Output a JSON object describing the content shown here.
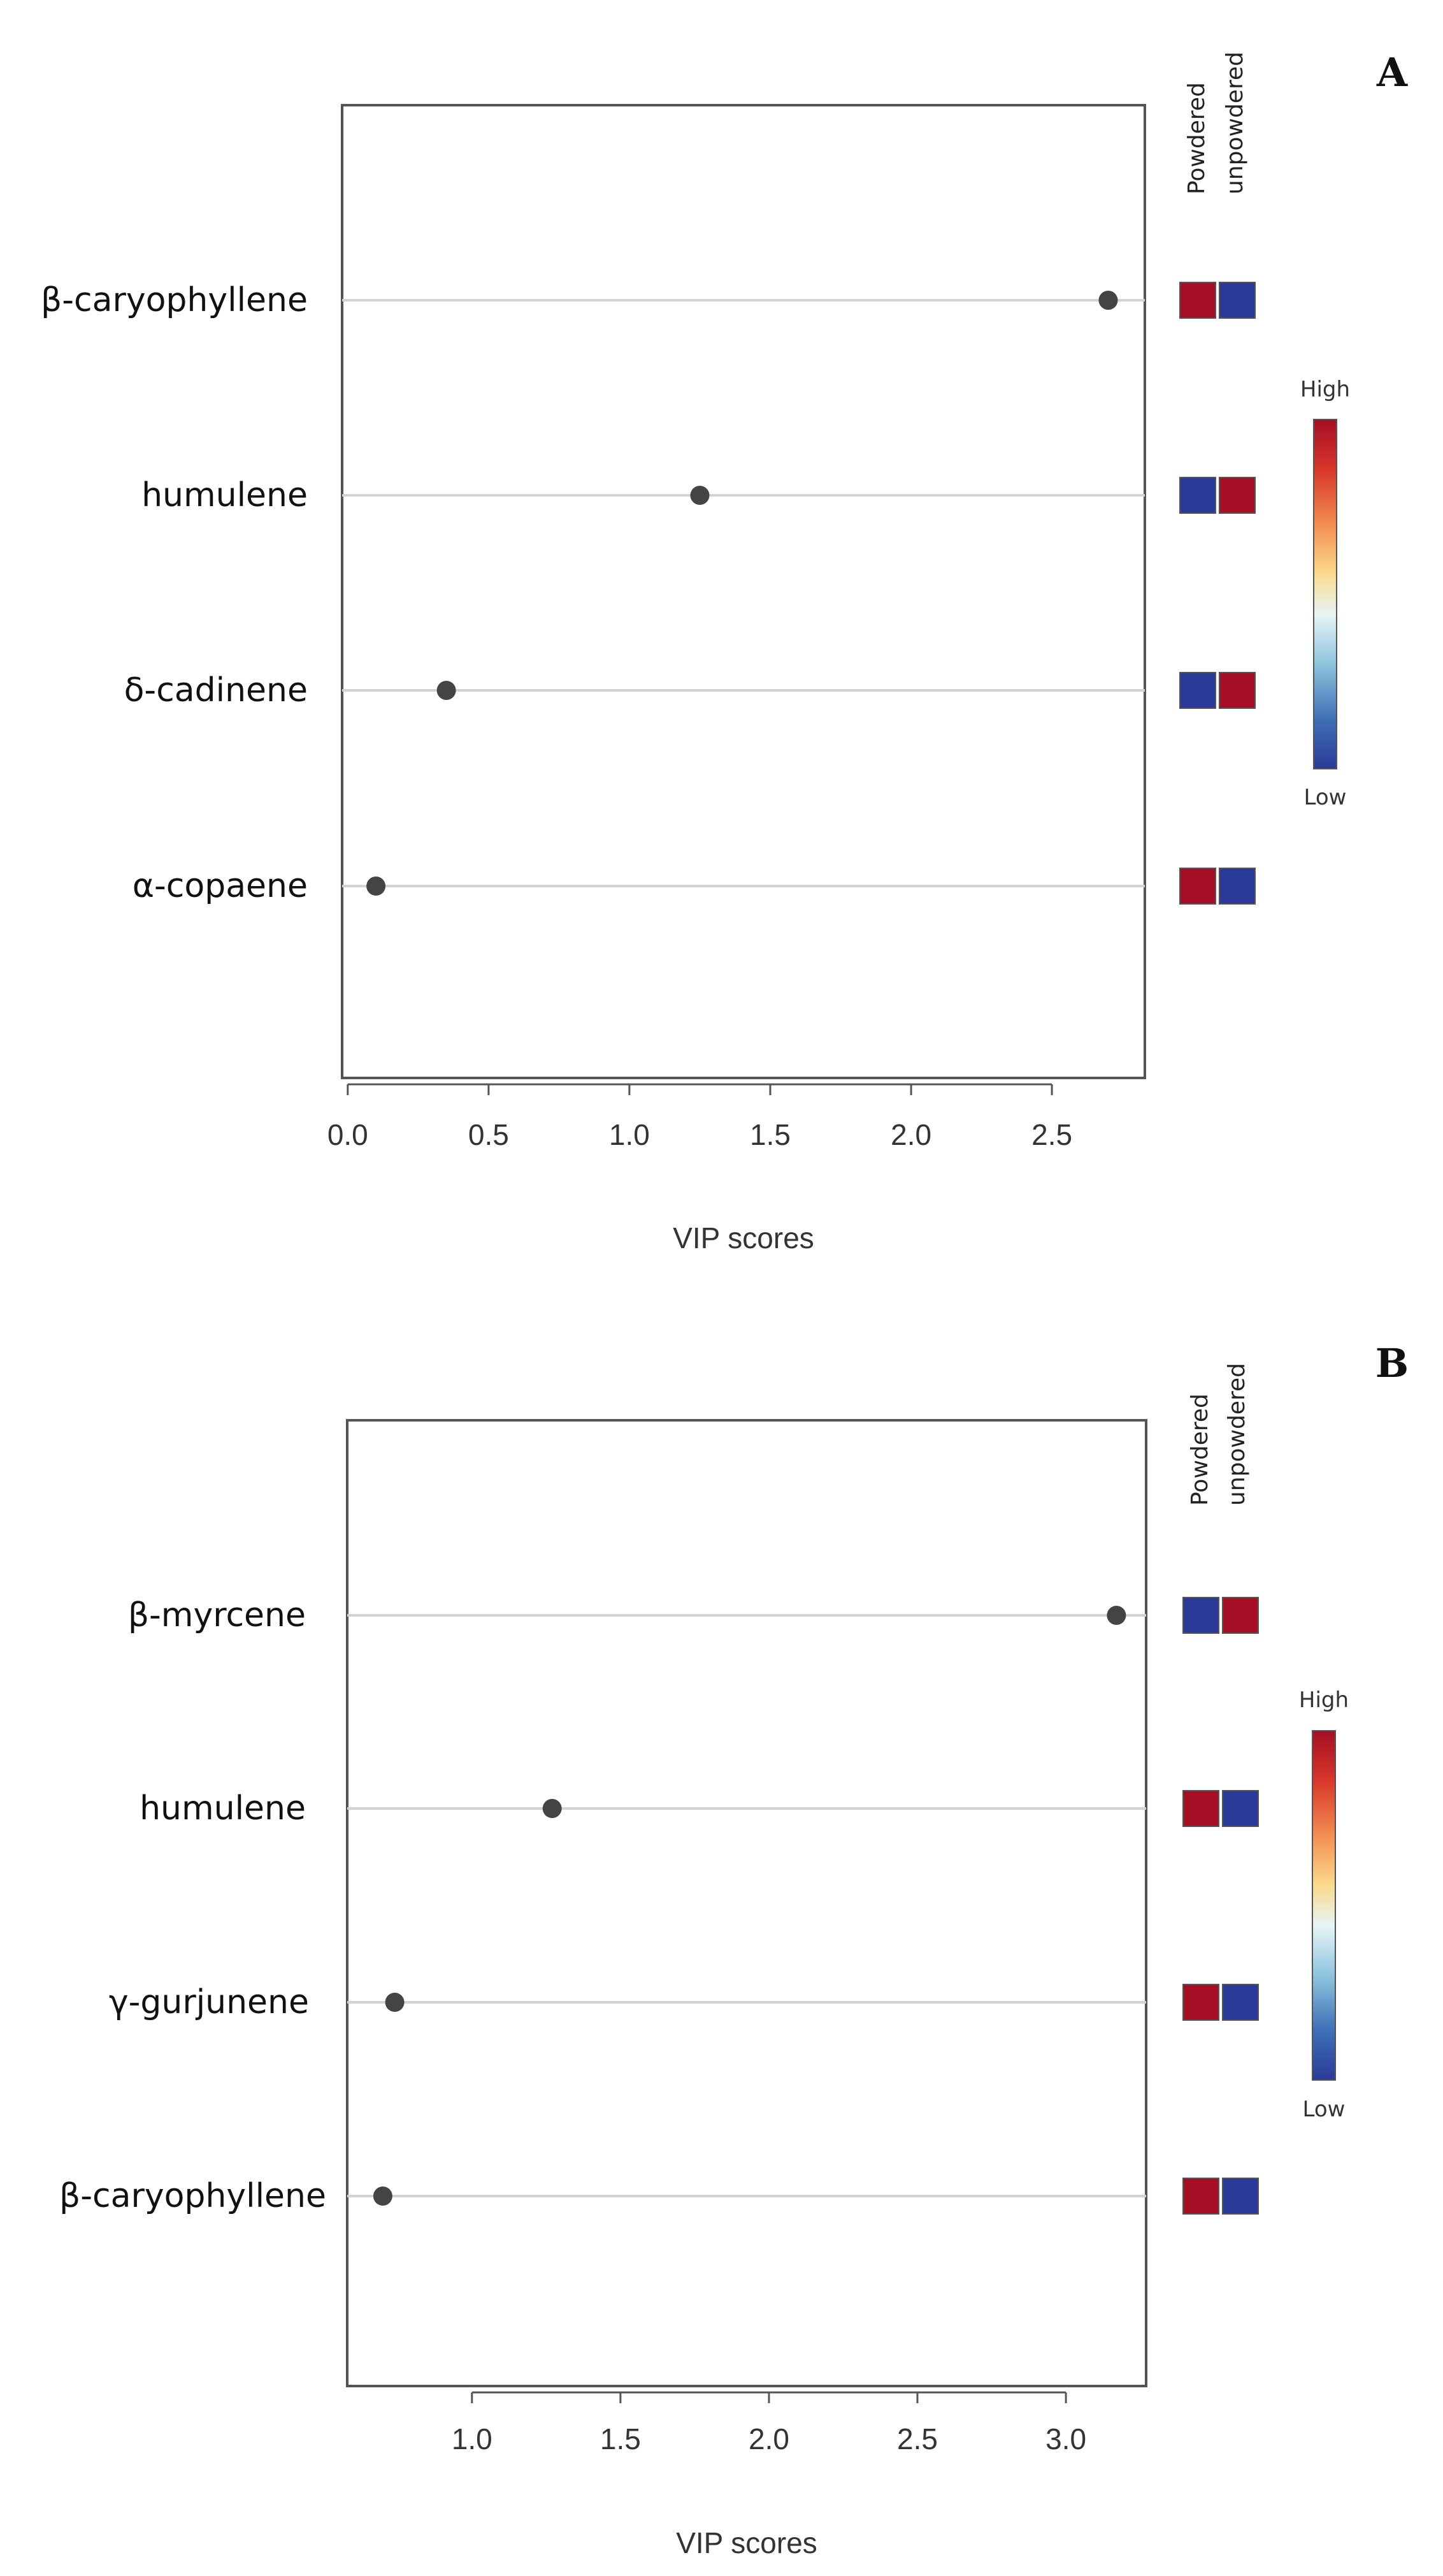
{
  "chart_data": [
    {
      "type": "scatter",
      "panel_label": "A",
      "xlabel": "VIP scores",
      "x_ticks": [
        "0.0",
        "0.5",
        "1.0",
        "1.5",
        "2.0",
        "2.5"
      ],
      "xlim": [
        -0.02,
        2.83
      ],
      "categories": [
        "β-caryophyllene",
        "humulene",
        "δ-cadinene",
        "α-copaene"
      ],
      "values": [
        2.7,
        1.25,
        0.35,
        0.1
      ],
      "heatmap_columns": [
        "Powdered",
        "unpowdered"
      ],
      "heatmap": [
        [
          "High",
          "Low"
        ],
        [
          "Low",
          "High"
        ],
        [
          "Low",
          "High"
        ],
        [
          "High",
          "Low"
        ]
      ],
      "scale_labels": {
        "high": "High",
        "low": "Low"
      },
      "grid": "horizontal",
      "legend_position": "right"
    },
    {
      "type": "scatter",
      "panel_label": "B",
      "xlabel": "VIP scores",
      "x_ticks": [
        "1.0",
        "1.5",
        "2.0",
        "2.5",
        "3.0"
      ],
      "xlim": [
        0.58,
        3.27
      ],
      "categories": [
        "β-myrcene",
        "humulene",
        "γ-gurjunene",
        "β-caryophyllene"
      ],
      "values": [
        3.17,
        1.27,
        0.74,
        0.7
      ],
      "heatmap_columns": [
        "Powdered",
        "unpowdered"
      ],
      "heatmap": [
        [
          "Low",
          "High"
        ],
        [
          "High",
          "Low"
        ],
        [
          "High",
          "Low"
        ],
        [
          "High",
          "Low"
        ]
      ],
      "scale_labels": {
        "high": "High",
        "low": "Low"
      },
      "grid": "horizontal",
      "legend_position": "right"
    }
  ],
  "colors": {
    "high": "#a50f25",
    "low": "#2b3a98",
    "point": "#444444",
    "grid": "#d3d3d3",
    "frame": "#555555",
    "scale": [
      "#a50f25",
      "#d7352a",
      "#f48d52",
      "#fbd98d",
      "#e6f4f6",
      "#8fc4df",
      "#3d6fb5",
      "#2b3a98"
    ]
  }
}
